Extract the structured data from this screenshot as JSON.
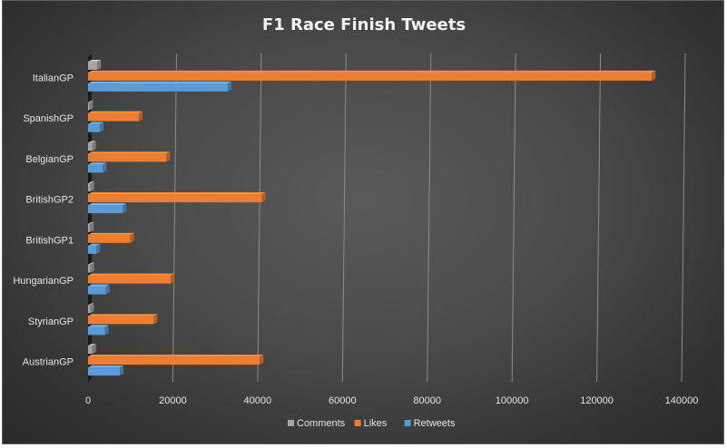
{
  "chart_data": {
    "type": "bar",
    "orientation": "horizontal",
    "title": "F1 Race Finish Tweets",
    "categories": [
      "ItalianGP",
      "SpanishGP",
      "BelgianGP",
      "BritishGP2",
      "BritishGP1",
      "HungarianGP",
      "StyrianGP",
      "AustrianGP"
    ],
    "series": [
      {
        "name": "Comments",
        "color": "#a5a5a5",
        "values": [
          2200,
          300,
          1000,
          600,
          500,
          600,
          500,
          1000
        ]
      },
      {
        "name": "Likes",
        "color": "#ed7d31",
        "values": [
          133000,
          12000,
          18500,
          41000,
          10000,
          19500,
          15500,
          40500
        ]
      },
      {
        "name": "Retweets",
        "color": "#5b9bd5",
        "values": [
          33000,
          2800,
          3500,
          8200,
          2000,
          4200,
          4000,
          7500
        ]
      }
    ],
    "xlim": [
      0,
      140000
    ],
    "xticks": [
      0,
      20000,
      40000,
      60000,
      80000,
      100000,
      120000,
      140000
    ],
    "legend_position": "bottom",
    "grid": true
  }
}
